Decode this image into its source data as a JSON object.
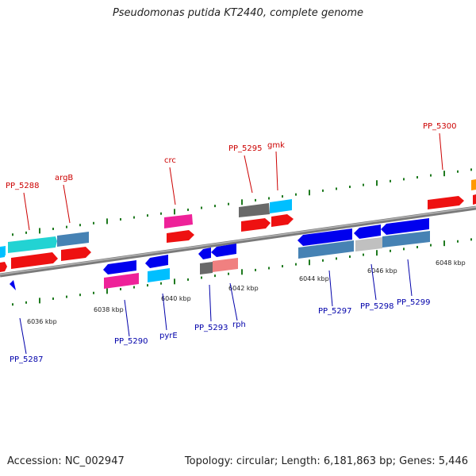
{
  "title": "Pseudomonas putida KT2440, complete genome",
  "accession_text": "Accession: NC_002947",
  "summary_text": "Topology: circular; Length: 6,181,863 bp; Genes: 5,446",
  "colors": {
    "axis": "#8c8c8c",
    "tick": "#1f7a1f",
    "fwd_label": "#cc0000",
    "rev_label": "#0000aa"
  },
  "tick_labels": [
    "6036 kbp",
    "6038 kbp",
    "6040 kbp",
    "6042 kbp",
    "6044 kbp",
    "6046 kbp",
    "6048 kbp"
  ],
  "gene_labels_forward": [
    "PP_5288",
    "argB",
    "crc",
    "PP_5295",
    "gmk",
    "PP_5300"
  ],
  "gene_labels_reverse": [
    "PP_5287",
    "PP_5290",
    "pyrE",
    "PP_5293",
    "rph",
    "PP_5297",
    "PP_5298",
    "PP_5299"
  ]
}
